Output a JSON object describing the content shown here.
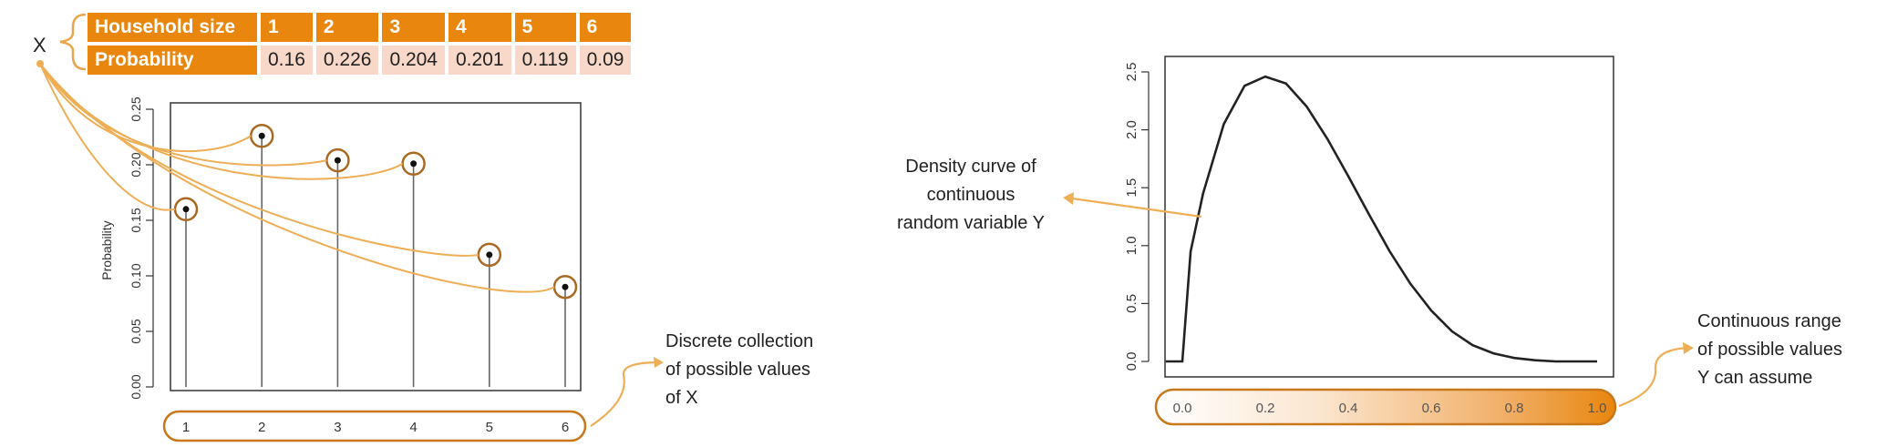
{
  "table": {
    "header_label": "Household size",
    "value_label": "Probability",
    "sizes": [
      "1",
      "2",
      "3",
      "4",
      "5",
      "6"
    ],
    "probabilities": [
      "0.16",
      "0.226",
      "0.204",
      "0.201",
      "0.119",
      "0.09"
    ]
  },
  "variable_label": "X",
  "annotations": {
    "discrete": [
      "Discrete collection",
      "of possible values",
      "of X"
    ],
    "density": [
      "Density curve of",
      "continuous",
      "random variable Y"
    ],
    "continuous": [
      "Continuous range",
      "of possible values",
      "Y can assume"
    ]
  },
  "colors": {
    "accent": "#e8860e",
    "table_value_bg": "#f8d8c8",
    "curve": "#222222"
  },
  "chart_data": [
    {
      "type": "bar",
      "style": "stem",
      "categories": [
        1,
        2,
        3,
        4,
        5,
        6
      ],
      "values": [
        0.16,
        0.226,
        0.204,
        0.201,
        0.119,
        0.09
      ],
      "ylabel": "Probability",
      "xlim": [
        1,
        6
      ],
      "ylim": [
        0,
        0.25
      ],
      "xticks": [
        "1",
        "2",
        "3",
        "4",
        "5",
        "6"
      ],
      "yticks": [
        "0.00",
        "0.05",
        "0.10",
        "0.15",
        "0.20",
        "0.25"
      ],
      "grid": false
    },
    {
      "type": "line",
      "x": [
        0.0,
        0.02,
        0.05,
        0.1,
        0.15,
        0.2,
        0.25,
        0.3,
        0.35,
        0.4,
        0.45,
        0.5,
        0.55,
        0.6,
        0.65,
        0.7,
        0.75,
        0.8,
        0.85,
        0.9,
        0.95,
        1.0
      ],
      "y": [
        0.0,
        0.95,
        1.45,
        2.05,
        2.38,
        2.46,
        2.4,
        2.2,
        1.92,
        1.6,
        1.27,
        0.95,
        0.67,
        0.44,
        0.26,
        0.14,
        0.07,
        0.03,
        0.01,
        0.0,
        0.0,
        0.0
      ],
      "xlim": [
        0,
        1
      ],
      "ylim": [
        0,
        2.5
      ],
      "xticks": [
        "0.0",
        "0.2",
        "0.4",
        "0.6",
        "0.8",
        "1.0"
      ],
      "yticks": [
        "0.0",
        "0.5",
        "1.0",
        "1.5",
        "2.0",
        "2.5"
      ],
      "grid": false
    }
  ]
}
